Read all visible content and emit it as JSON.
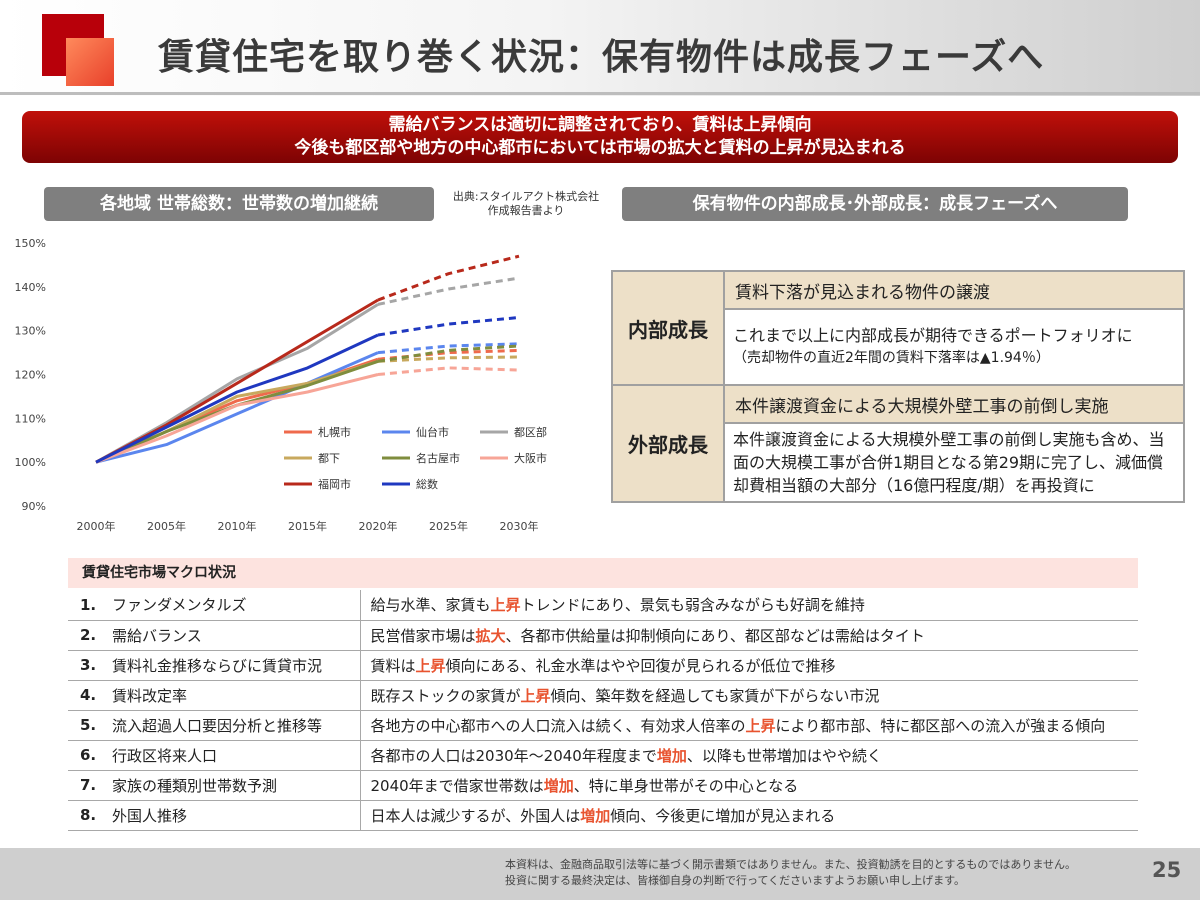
{
  "title": "賃貸住宅を取り巻く状況：保有物件は成長フェーズへ",
  "banner": {
    "line1": "需給バランスは適切に調整されており、賃料は上昇傾向",
    "line2": "今後も都区部や地方の中心都市においては市場の拡大と賃料の上昇が見込まれる"
  },
  "left_section": {
    "heading": "各地域 世帯総数：世帯数の増加継続",
    "source_line1": "出典:スタイルアクト株式会社",
    "source_line2": "作成報告書より"
  },
  "right_section": {
    "heading": "保有物件の内部成長･外部成長：成長フェーズへ"
  },
  "chart_data": {
    "type": "line",
    "x": [
      "2000年",
      "2005年",
      "2010年",
      "2015年",
      "2020年",
      "2025年",
      "2030年"
    ],
    "ylim": [
      90,
      150
    ],
    "yticks": [
      "90%",
      "100%",
      "110%",
      "120%",
      "130%",
      "140%",
      "150%"
    ],
    "projection_from": "2020年",
    "series": [
      {
        "name": "札幌市",
        "color": "#ef6a4c",
        "values": [
          100,
          107,
          114,
          118,
          123.5,
          125,
          125.5
        ]
      },
      {
        "name": "仙台市",
        "color": "#5b86ee",
        "values": [
          100,
          104,
          111,
          118,
          125,
          126.5,
          127
        ]
      },
      {
        "name": "都区部",
        "color": "#a6a6a6",
        "values": [
          100,
          109,
          119,
          126,
          136,
          139.5,
          142
        ]
      },
      {
        "name": "都下",
        "color": "#c8a95e",
        "values": [
          100,
          107,
          115,
          118,
          123,
          123.8,
          124
        ]
      },
      {
        "name": "名古屋市",
        "color": "#7f8d3e",
        "values": [
          100,
          107,
          113,
          117.5,
          123,
          125.5,
          126.5
        ]
      },
      {
        "name": "大阪市",
        "color": "#f7a597",
        "values": [
          100,
          106,
          113,
          116,
          120,
          121.5,
          121
        ]
      },
      {
        "name": "福岡市",
        "color": "#b8291b",
        "values": [
          100,
          108.5,
          118,
          127.5,
          137,
          143,
          147
        ]
      },
      {
        "name": "総数",
        "color": "#1f38c0",
        "values": [
          100,
          108,
          116,
          121.5,
          129,
          131.5,
          133
        ]
      }
    ],
    "legend": "inside-lower-right"
  },
  "growth_table": {
    "internal": {
      "label": "内部成長",
      "item": "賃料下落が見込まれる物件の譲渡",
      "desc": "これまで以上に内部成長が期待できるポートフォリオに",
      "note": "（売却物件の直近2年間の賃料下落率は▲1.94％）"
    },
    "external": {
      "label": "外部成長",
      "item": "本件譲渡資金による大規模外壁工事の前倒し実施",
      "desc": "本件譲渡資金による大規模外壁工事の前倒し実施も含め、当面の大規模工事が合併1期目となる第29期に完了し、減価償却費相当額の大部分（16億円程度/期）を再投資に"
    }
  },
  "macro": {
    "heading": "賃貸住宅市場マクロ状況",
    "rows": [
      {
        "num": "1.",
        "name": "ファンダメンタルズ",
        "pre": "給与水準、家賃も",
        "hl": "上昇",
        "post": "トレンドにあり、景気も弱含みながらも好調を維持"
      },
      {
        "num": "2.",
        "name": "需給バランス",
        "pre": "民営借家市場は",
        "hl": "拡大",
        "post": "、各都市供給量は抑制傾向にあり、都区部などは需給はタイト"
      },
      {
        "num": "3.",
        "name": "賃料礼金推移ならびに賃貸市況",
        "pre": "賃料は",
        "hl": "上昇",
        "post": "傾向にある、礼金水準はやや回復が見られるが低位で推移"
      },
      {
        "num": "4.",
        "name": "賃料改定率",
        "pre": "既存ストックの家賃が",
        "hl": "上昇",
        "post": "傾向、築年数を経過しても家賃が下がらない市況"
      },
      {
        "num": "5.",
        "name": "流入超過人口要因分析と推移等",
        "pre": "各地方の中心都市への人口流入は続く、有効求人倍率の",
        "hl": "上昇",
        "post": "により都市部、特に都区部への流入が強まる傾向"
      },
      {
        "num": "6.",
        "name": "行政区将来人口",
        "pre": "各都市の人口は2030年～2040年程度まで",
        "hl": "増加",
        "post": "、以降も世帯増加はやや続く"
      },
      {
        "num": "7.",
        "name": "家族の種類別世帯数予測",
        "pre": "2040年まで借家世帯数は",
        "hl": "増加",
        "post": "、特に単身世帯がその中心となる"
      },
      {
        "num": "8.",
        "name": "外国人推移",
        "pre": "日本人は減少するが、外国人は",
        "hl": "増加",
        "post": "傾向、今後更に増加が見込まれる"
      }
    ]
  },
  "footer": {
    "disclaimer_line1": "本資料は、金融商品取引法等に基づく開示書類ではありません。また、投資勧誘を目的とするものではありません。",
    "disclaimer_line2": "投資に関する最終決定は、皆様御自身の判断で行ってくださいますようお願い申し上げます。",
    "page": "25"
  }
}
